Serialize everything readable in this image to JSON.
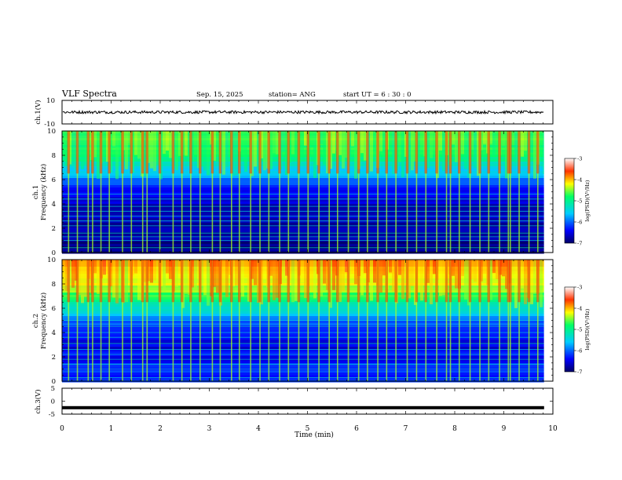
{
  "chart_data": {
    "type": "heatmap",
    "title": "VLF Spectra",
    "date": "Sep. 15, 2025",
    "station": "station= ANG",
    "start": "start  UT =   6 : 30 : 0",
    "xlabel": "Time  (min)",
    "x_ticks": [
      "0",
      "1",
      "2",
      "3",
      "4",
      "5",
      "6",
      "7",
      "8",
      "9",
      "10"
    ],
    "xlim": [
      0,
      10
    ],
    "data_end_min": 9.82,
    "panels": [
      {
        "name": "ch1-waveform",
        "type": "line",
        "ylabel": "ch.1(V)",
        "ylim": [
          -10,
          10
        ],
        "y_ticks": [
          "10",
          "-10"
        ],
        "baseline": 0,
        "noise_amplitude": 0.4
      },
      {
        "name": "ch1-spectrogram",
        "type": "heatmap",
        "ylabel": "ch.1\nFrequency  (kHz)",
        "ylim": [
          0,
          10
        ],
        "y_ticks": [
          "0",
          "2",
          "4",
          "6",
          "8",
          "10"
        ],
        "colorbar": {
          "label": "log(PSD)(V²/Hz)",
          "range": [
            -7,
            -3
          ],
          "ticks": [
            "-3",
            "-4",
            "-5",
            "-6",
            "-7"
          ]
        },
        "description_profile": [
          {
            "f_khz": 10,
            "log_psd": -4.6
          },
          {
            "f_khz": 8,
            "log_psd": -4.9
          },
          {
            "f_khz": 6.5,
            "log_psd": -5.7
          },
          {
            "f_khz": 5,
            "log_psd": -6.5
          },
          {
            "f_khz": 3,
            "log_psd": -6.7
          },
          {
            "f_khz": 0.5,
            "log_psd": -6.8
          }
        ],
        "tone_lines_khz": [
          0.4,
          1.0,
          1.3,
          1.6,
          2.2,
          2.6,
          3.0,
          3.4,
          3.8,
          4.4,
          4.8
        ]
      },
      {
        "name": "ch2-spectrogram",
        "type": "heatmap",
        "ylabel": "ch.2\nFrequency  (kHz)",
        "ylim": [
          0,
          10
        ],
        "y_ticks": [
          "0",
          "2",
          "4",
          "6",
          "8",
          "10"
        ],
        "colorbar": {
          "label": "log(PSD)(V²/Hz)",
          "range": [
            -7,
            -3
          ],
          "ticks": [
            "-3",
            "-4",
            "-5",
            "-6",
            "-7"
          ]
        },
        "description_profile": [
          {
            "f_khz": 10,
            "log_psd": -3.8
          },
          {
            "f_khz": 8,
            "log_psd": -4.3
          },
          {
            "f_khz": 6.5,
            "log_psd": -5.0
          },
          {
            "f_khz": 5,
            "log_psd": -6.0
          },
          {
            "f_khz": 3,
            "log_psd": -6.5
          },
          {
            "f_khz": 0.3,
            "log_psd": -6.2
          }
        ],
        "tone_lines_khz": [
          0.3,
          1.0,
          1.4,
          1.8,
          2.2,
          2.6,
          3.1,
          3.6,
          4.0,
          4.5,
          5.0
        ]
      },
      {
        "name": "ch3-waveform",
        "type": "line",
        "ylabel": "ch.3(V)",
        "ylim": [
          -5,
          5
        ],
        "y_ticks": [
          "5",
          "0",
          "-5"
        ],
        "baseline": -2.5
      }
    ],
    "sferic_times_min": [
      0.12,
      0.3,
      0.52,
      0.61,
      0.78,
      0.95,
      1.22,
      1.4,
      1.63,
      1.72,
      1.98,
      2.25,
      2.43,
      2.61,
      2.8,
      3.05,
      3.21,
      3.44,
      3.6,
      3.83,
      4.02,
      4.2,
      4.42,
      4.6,
      4.81,
      5.0,
      5.22,
      5.43,
      5.6,
      5.82,
      6.03,
      6.21,
      6.42,
      6.6,
      6.79,
      7.02,
      7.21,
      7.4,
      7.62,
      7.82,
      7.9,
      8.08,
      8.3,
      8.5,
      8.68,
      8.9,
      9.08,
      9.12,
      9.3,
      9.5,
      9.68
    ]
  },
  "colors": {
    "background": "#ffffff",
    "low": "#000066",
    "high": "#ff0000"
  }
}
